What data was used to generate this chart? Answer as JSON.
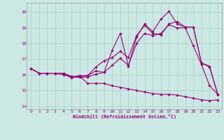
{
  "xlabel": "Windchill (Refroidissement éolien,°C)",
  "xlim": [
    -0.5,
    23.5
  ],
  "ylim": [
    13.8,
    20.6
  ],
  "yticks": [
    14,
    15,
    16,
    17,
    18,
    19,
    20
  ],
  "xticks": [
    0,
    1,
    2,
    3,
    4,
    5,
    6,
    7,
    8,
    9,
    10,
    11,
    12,
    13,
    14,
    15,
    16,
    17,
    18,
    19,
    20,
    21,
    22,
    23
  ],
  "background_color": "#cce8e4",
  "line_color": "#990077",
  "grid_color": "#aaccc8",
  "line1_y": [
    16.4,
    16.1,
    16.1,
    16.1,
    16.0,
    15.85,
    15.85,
    15.85,
    16.05,
    16.15,
    16.6,
    17.05,
    16.6,
    18.0,
    18.65,
    18.5,
    18.65,
    19.2,
    19.0,
    19.0,
    17.85,
    16.65,
    15.3,
    14.75
  ],
  "line2_y": [
    16.4,
    16.1,
    16.1,
    16.1,
    16.1,
    15.85,
    15.95,
    15.95,
    16.5,
    16.9,
    17.1,
    17.5,
    17.1,
    18.5,
    19.15,
    18.65,
    18.55,
    19.25,
    19.4,
    19.05,
    19.05,
    16.75,
    16.5,
    14.75
  ],
  "line3_y": [
    16.4,
    16.1,
    16.1,
    16.1,
    16.1,
    15.9,
    15.85,
    15.95,
    16.25,
    16.15,
    17.55,
    18.65,
    16.55,
    18.4,
    19.25,
    18.75,
    19.55,
    20.05,
    19.25,
    19.05,
    19.05,
    16.75,
    16.55,
    14.75
  ],
  "line4_y": [
    16.4,
    16.1,
    16.1,
    16.1,
    16.1,
    15.8,
    15.9,
    15.45,
    15.45,
    15.45,
    15.3,
    15.2,
    15.1,
    15.0,
    14.9,
    14.8,
    14.75,
    14.75,
    14.7,
    14.6,
    14.5,
    14.4,
    14.35,
    14.4
  ]
}
